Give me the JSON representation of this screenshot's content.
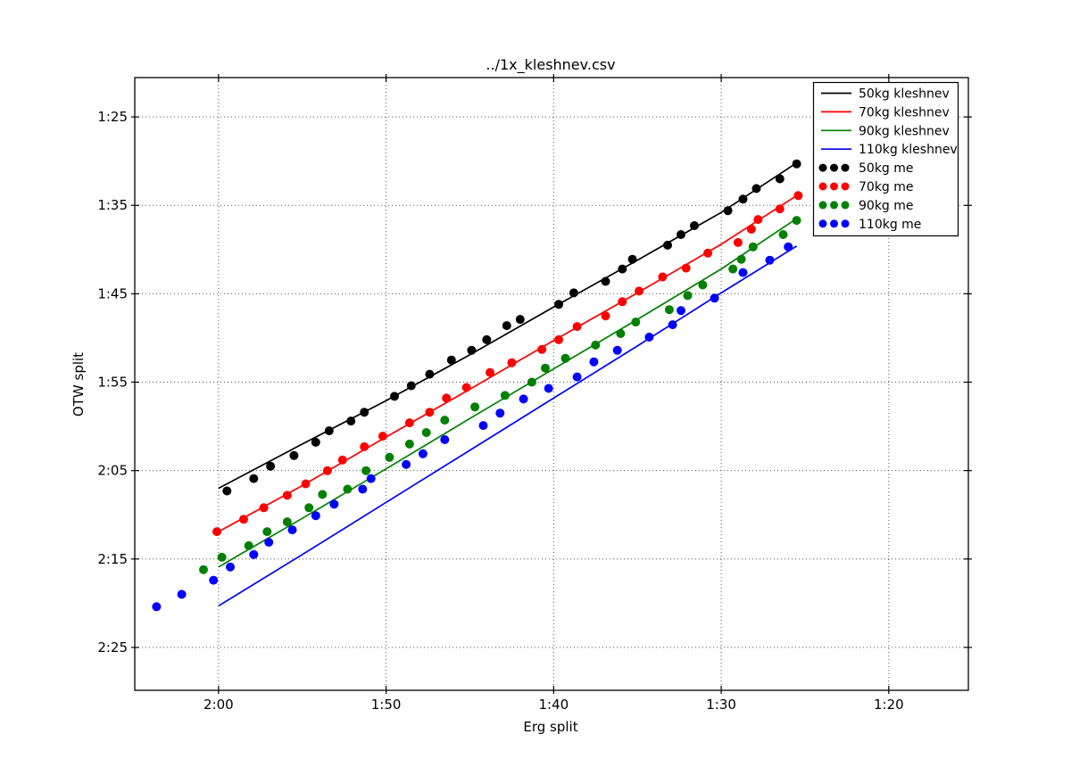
{
  "chart_data": {
    "type": "line",
    "title": "../1x_kleshnev.csv",
    "xlabel": "Erg split",
    "ylabel": "OTW split",
    "grid": true,
    "legend_position": "upper right",
    "x_axis": {
      "unit": "seconds per 500m (mm:ss)",
      "reversed": true,
      "range_s": [
        125.0,
        75.25
      ],
      "ticks_s": [
        120,
        110,
        100,
        90,
        80
      ],
      "tick_labels": [
        "2:00",
        "1:50",
        "1:40",
        "1:30",
        "1:20"
      ]
    },
    "y_axis": {
      "unit": "seconds per 500m (mm:ss)",
      "reversed": true,
      "range_s": [
        149.85,
        80.55
      ],
      "ticks_s": [
        85,
        95,
        105,
        115,
        125,
        135,
        145
      ],
      "tick_labels": [
        "1:25",
        "1:35",
        "1:45",
        "1:55",
        "2:05",
        "2:15",
        "2:25"
      ]
    },
    "series": [
      {
        "name": "50kg-kleshnev",
        "label": "50kg kleshnev",
        "color": "#000000",
        "type": "line",
        "points": [
          [
            120,
            127.0
          ],
          [
            115,
            122.0
          ],
          [
            110,
            117.1
          ],
          [
            105,
            111.9
          ],
          [
            100,
            106.5
          ],
          [
            95,
            101.2
          ],
          [
            90,
            95.8
          ],
          [
            85.5,
            90.2
          ]
        ]
      },
      {
        "name": "70kg-kleshnev",
        "label": "70kg kleshnev",
        "color": "#ff0000",
        "type": "line",
        "points": [
          [
            120,
            131.9
          ],
          [
            115,
            126.7
          ],
          [
            110,
            121.2
          ],
          [
            105,
            115.8
          ],
          [
            100,
            110.3
          ],
          [
            95,
            104.9
          ],
          [
            90,
            99.4
          ],
          [
            85.5,
            93.9
          ]
        ]
      },
      {
        "name": "90kg-kleshnev",
        "label": "90kg kleshnev",
        "color": "#008000",
        "type": "line",
        "points": [
          [
            120,
            135.9
          ],
          [
            115,
            130.4
          ],
          [
            110,
            124.8
          ],
          [
            105,
            119.1
          ],
          [
            100,
            113.5
          ],
          [
            95,
            107.9
          ],
          [
            90,
            102.2
          ],
          [
            85.5,
            96.5
          ]
        ]
      },
      {
        "name": "110kg-kleshnev",
        "label": "110kg kleshnev",
        "color": "#0000ff",
        "type": "line",
        "points": [
          [
            120,
            140.3
          ],
          [
            115,
            134.5
          ],
          [
            110,
            128.6
          ],
          [
            105,
            122.7
          ],
          [
            100,
            116.8
          ],
          [
            95,
            110.9
          ],
          [
            90,
            104.9
          ],
          [
            85.5,
            99.6
          ]
        ]
      },
      {
        "name": "50kg-me",
        "label": "50kg me",
        "color": "#000000",
        "type": "scatter",
        "points": [
          [
            119.5,
            127.3
          ],
          [
            117.9,
            125.9
          ],
          [
            116.9,
            124.5
          ],
          [
            115.5,
            123.3
          ],
          [
            114.2,
            121.8
          ],
          [
            113.4,
            120.5
          ],
          [
            112.1,
            119.4
          ],
          [
            111.3,
            118.4
          ],
          [
            109.5,
            116.6
          ],
          [
            108.5,
            115.4
          ],
          [
            107.4,
            114.1
          ],
          [
            106.1,
            112.5
          ],
          [
            104.9,
            111.4
          ],
          [
            104.0,
            110.2
          ],
          [
            102.8,
            108.6
          ],
          [
            102.0,
            107.9
          ],
          [
            99.7,
            106.2
          ],
          [
            98.8,
            104.9
          ],
          [
            96.9,
            103.6
          ],
          [
            95.9,
            102.2
          ],
          [
            95.3,
            101.1
          ],
          [
            93.2,
            99.5
          ],
          [
            92.4,
            98.3
          ],
          [
            91.6,
            97.3
          ],
          [
            89.6,
            95.6
          ],
          [
            88.7,
            94.3
          ],
          [
            87.9,
            93.1
          ],
          [
            86.5,
            92.0
          ],
          [
            85.5,
            90.3
          ]
        ]
      },
      {
        "name": "70kg-me",
        "label": "70kg me",
        "color": "#ff0000",
        "type": "scatter",
        "points": [
          [
            120.1,
            131.9
          ],
          [
            118.5,
            130.5
          ],
          [
            117.3,
            129.2
          ],
          [
            115.9,
            127.8
          ],
          [
            114.8,
            126.5
          ],
          [
            113.5,
            125.0
          ],
          [
            112.6,
            123.8
          ],
          [
            111.3,
            122.3
          ],
          [
            110.2,
            121.1
          ],
          [
            108.6,
            119.6
          ],
          [
            107.4,
            118.4
          ],
          [
            106.4,
            116.8
          ],
          [
            105.2,
            115.6
          ],
          [
            103.8,
            113.9
          ],
          [
            102.5,
            112.8
          ],
          [
            100.7,
            111.3
          ],
          [
            99.7,
            110.2
          ],
          [
            98.6,
            108.7
          ],
          [
            96.9,
            107.5
          ],
          [
            95.9,
            105.9
          ],
          [
            94.9,
            104.7
          ],
          [
            93.5,
            103.1
          ],
          [
            92.1,
            102.1
          ],
          [
            90.8,
            100.4
          ],
          [
            89.0,
            99.2
          ],
          [
            88.2,
            97.7
          ],
          [
            87.8,
            96.6
          ],
          [
            86.5,
            95.4
          ],
          [
            85.4,
            93.9
          ]
        ]
      },
      {
        "name": "90kg-me",
        "label": "90kg me",
        "color": "#008000",
        "type": "scatter",
        "points": [
          [
            120.9,
            136.2
          ],
          [
            119.8,
            134.8
          ],
          [
            118.2,
            133.5
          ],
          [
            117.1,
            131.9
          ],
          [
            115.9,
            130.8
          ],
          [
            114.6,
            129.2
          ],
          [
            113.8,
            127.7
          ],
          [
            112.3,
            127.1
          ],
          [
            111.2,
            125.0
          ],
          [
            109.8,
            123.5
          ],
          [
            108.6,
            122.0
          ],
          [
            107.6,
            120.7
          ],
          [
            106.5,
            119.3
          ],
          [
            104.7,
            117.8
          ],
          [
            102.9,
            116.5
          ],
          [
            101.3,
            115.0
          ],
          [
            100.5,
            113.4
          ],
          [
            99.3,
            112.3
          ],
          [
            97.5,
            110.8
          ],
          [
            96.0,
            109.5
          ],
          [
            95.1,
            108.2
          ],
          [
            93.1,
            106.8
          ],
          [
            92.0,
            105.2
          ],
          [
            91.1,
            104.0
          ],
          [
            89.3,
            102.2
          ],
          [
            88.8,
            101.1
          ],
          [
            88.1,
            99.7
          ],
          [
            86.3,
            98.3
          ],
          [
            85.5,
            96.7
          ]
        ]
      },
      {
        "name": "110kg-me",
        "label": "110kg me",
        "color": "#0000ff",
        "type": "scatter",
        "points": [
          [
            123.7,
            140.4
          ],
          [
            122.2,
            139.0
          ],
          [
            120.3,
            137.4
          ],
          [
            119.3,
            135.9
          ],
          [
            117.9,
            134.5
          ],
          [
            117.0,
            133.1
          ],
          [
            115.6,
            131.7
          ],
          [
            114.2,
            130.1
          ],
          [
            113.1,
            128.8
          ],
          [
            111.4,
            127.1
          ],
          [
            110.9,
            125.9
          ],
          [
            108.8,
            124.3
          ],
          [
            107.8,
            123.1
          ],
          [
            106.5,
            121.5
          ],
          [
            104.2,
            119.9
          ],
          [
            103.2,
            118.5
          ],
          [
            101.8,
            116.9
          ],
          [
            100.3,
            115.7
          ],
          [
            98.6,
            114.4
          ],
          [
            97.6,
            112.7
          ],
          [
            96.2,
            111.4
          ],
          [
            94.3,
            109.9
          ],
          [
            92.9,
            108.5
          ],
          [
            92.4,
            106.9
          ],
          [
            90.4,
            105.5
          ],
          [
            88.7,
            102.6
          ],
          [
            87.1,
            101.2
          ],
          [
            86.0,
            99.7
          ]
        ]
      }
    ]
  }
}
